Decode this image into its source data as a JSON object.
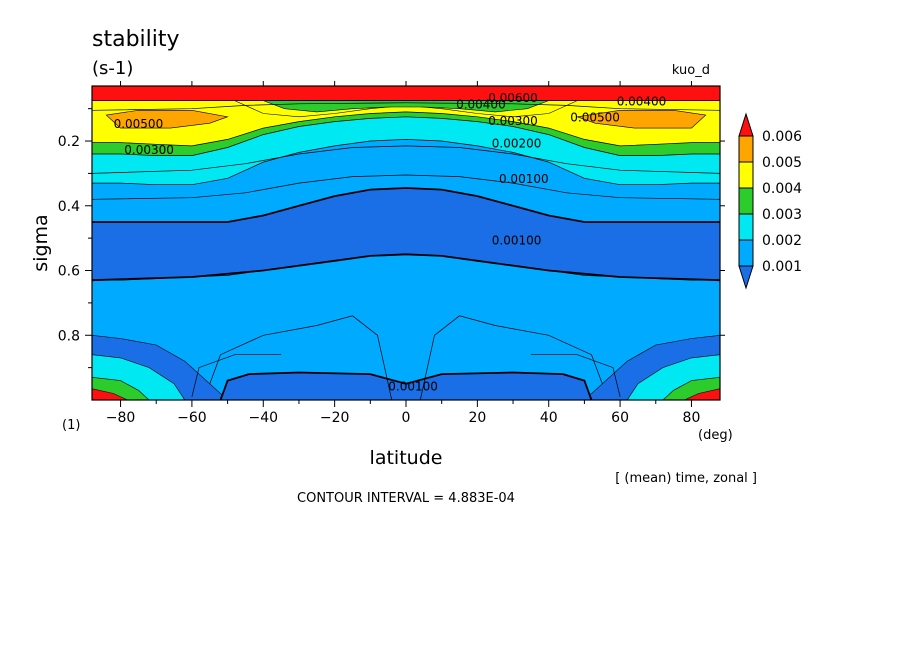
{
  "chart_data": {
    "type": "heatmap",
    "title": "stability",
    "units": "(s-1)",
    "run_label": "kuo_d",
    "xlabel": "latitude",
    "xunit": "(deg)",
    "ylabel": "sigma",
    "yunit": "(1)",
    "operation_note": "[ (mean) time, zonal ]",
    "contour_interval_text": "CONTOUR INTERVAL = 4.883E-04",
    "xlim": [
      -88,
      88
    ],
    "ylim": [
      1.0,
      0.03
    ],
    "xticks": [
      -80,
      -60,
      -40,
      -20,
      0,
      20,
      40,
      60,
      80
    ],
    "yticks": [
      0.2,
      0.4,
      0.6,
      0.8
    ],
    "colorbar_levels": [
      0.001,
      0.002,
      0.003,
      0.004,
      0.005,
      0.006
    ],
    "colorbar_labels": [
      "0.001",
      "0.002",
      "0.003",
      "0.004",
      "0.005",
      "0.006"
    ],
    "colorbar_colors": [
      "#1a6ee6",
      "#00aaff",
      "#00e8f2",
      "#2dcc2d",
      "#ffff00",
      "#ffa500",
      "#ff1010"
    ],
    "contour_labels": [
      {
        "text": "0.00500",
        "lat": -75,
        "sigma": 0.16
      },
      {
        "text": "0.00300",
        "lat": -72,
        "sigma": 0.24
      },
      {
        "text": "0.00600",
        "lat": 30,
        "sigma": 0.08
      },
      {
        "text": "0.00400",
        "lat": 21,
        "sigma": 0.1
      },
      {
        "text": "0.00300",
        "lat": 30,
        "sigma": 0.15
      },
      {
        "text": "0.00200",
        "lat": 31,
        "sigma": 0.22
      },
      {
        "text": "0.00500",
        "lat": 53,
        "sigma": 0.14
      },
      {
        "text": "0.00400",
        "lat": 66,
        "sigma": 0.09
      },
      {
        "text": "0.00100",
        "lat": 33,
        "sigma": 0.33
      },
      {
        "text": "0.00100",
        "lat": 31,
        "sigma": 0.52
      },
      {
        "text": "0.00100",
        "lat": 2,
        "sigma": 0.97
      }
    ]
  },
  "bands": [
    {
      "color": "#ff1010",
      "top": [
        0.03,
        0.03,
        0.03,
        0.03,
        0.03,
        0.03,
        0.03,
        0.03,
        0.03,
        0.03,
        0.03,
        0.03,
        0.03,
        0.03,
        0.03,
        0.03,
        0.03,
        0.03,
        0.03
      ],
      "bottom": [
        0.075,
        0.075,
        0.075,
        0.075,
        0.075,
        0.075,
        0.075,
        0.075,
        0.075,
        0.075,
        0.075,
        0.075,
        0.075,
        0.075,
        0.075,
        0.075,
        0.075,
        0.075,
        0.075
      ]
    },
    {
      "color": "#ffff00",
      "top": [
        0.075,
        0.075,
        0.075,
        0.075,
        0.075,
        0.075,
        0.075,
        0.075,
        0.075,
        0.075,
        0.075,
        0.075,
        0.075,
        0.075,
        0.075,
        0.075,
        0.075,
        0.075,
        0.075
      ],
      "bottom": [
        0.205,
        0.205,
        0.21,
        0.215,
        0.195,
        0.16,
        0.14,
        0.125,
        0.115,
        0.11,
        0.115,
        0.125,
        0.14,
        0.16,
        0.195,
        0.215,
        0.21,
        0.205,
        0.205
      ]
    },
    {
      "color": "#2dcc2d",
      "top": [
        0.205,
        0.205,
        0.21,
        0.215,
        0.195,
        0.16,
        0.14,
        0.125,
        0.115,
        0.11,
        0.115,
        0.125,
        0.14,
        0.16,
        0.195,
        0.215,
        0.21,
        0.205,
        0.205
      ],
      "bottom": [
        0.24,
        0.24,
        0.245,
        0.245,
        0.22,
        0.18,
        0.155,
        0.14,
        0.13,
        0.125,
        0.13,
        0.14,
        0.155,
        0.18,
        0.22,
        0.245,
        0.245,
        0.24,
        0.24
      ]
    },
    {
      "color": "#00e8f2",
      "top": [
        0.24,
        0.24,
        0.245,
        0.245,
        0.22,
        0.18,
        0.155,
        0.14,
        0.13,
        0.125,
        0.13,
        0.14,
        0.155,
        0.18,
        0.22,
        0.245,
        0.245,
        0.24,
        0.24
      ],
      "bottom": [
        0.33,
        0.33,
        0.335,
        0.335,
        0.315,
        0.265,
        0.235,
        0.215,
        0.2,
        0.195,
        0.2,
        0.215,
        0.235,
        0.265,
        0.315,
        0.335,
        0.335,
        0.33,
        0.33
      ]
    },
    {
      "color": "#00aaff",
      "top": [
        0.33,
        0.33,
        0.335,
        0.335,
        0.315,
        0.265,
        0.235,
        0.215,
        0.2,
        0.195,
        0.2,
        0.215,
        0.235,
        0.265,
        0.315,
        0.335,
        0.335,
        0.33,
        0.33
      ],
      "bottom": [
        0.45,
        0.45,
        0.45,
        0.45,
        0.45,
        0.43,
        0.4,
        0.37,
        0.35,
        0.345,
        0.35,
        0.37,
        0.4,
        0.43,
        0.45,
        0.45,
        0.45,
        0.45,
        0.45
      ]
    },
    {
      "color": "#1a6ee6",
      "top": [
        0.45,
        0.45,
        0.45,
        0.45,
        0.45,
        0.43,
        0.4,
        0.37,
        0.35,
        0.345,
        0.35,
        0.37,
        0.4,
        0.43,
        0.45,
        0.45,
        0.45,
        0.45,
        0.45
      ],
      "bottom": [
        0.63,
        0.63,
        0.625,
        0.62,
        0.615,
        0.6,
        0.585,
        0.57,
        0.555,
        0.55,
        0.555,
        0.57,
        0.585,
        0.6,
        0.615,
        0.62,
        0.625,
        0.63,
        0.63
      ]
    },
    {
      "color": "#00aaff",
      "top": [
        0.63,
        0.63,
        0.625,
        0.62,
        0.615,
        0.6,
        0.585,
        0.57,
        0.555,
        0.55,
        0.555,
        0.57,
        0.585,
        0.6,
        0.615,
        0.62,
        0.625,
        0.63,
        0.63
      ],
      "bottom": [
        1.0,
        1.0,
        1.0,
        1.0,
        1.0,
        1.0,
        1.0,
        1.0,
        1.0,
        1.0,
        1.0,
        1.0,
        1.0,
        1.0,
        1.0,
        1.0,
        1.0,
        1.0,
        1.0
      ]
    }
  ],
  "band_x": [
    -88,
    -80,
    -70,
    -60,
    -50,
    -40,
    -30,
    -20,
    -10,
    0,
    10,
    20,
    30,
    40,
    50,
    60,
    70,
    80,
    88
  ],
  "patches": [
    {
      "color": "#1a6ee6",
      "points": [
        [
          -88,
          0.8
        ],
        [
          -80,
          0.81
        ],
        [
          -70,
          0.83
        ],
        [
          -62,
          0.88
        ],
        [
          -55,
          0.95
        ],
        [
          -50,
          1.0
        ],
        [
          -88,
          1.0
        ]
      ]
    },
    {
      "color": "#1a6ee6",
      "points": [
        [
          88,
          0.8
        ],
        [
          80,
          0.81
        ],
        [
          70,
          0.83
        ],
        [
          62,
          0.88
        ],
        [
          55,
          0.95
        ],
        [
          50,
          1.0
        ],
        [
          88,
          1.0
        ]
      ]
    },
    {
      "color": "#00e8f2",
      "points": [
        [
          -88,
          0.86
        ],
        [
          -80,
          0.87
        ],
        [
          -72,
          0.9
        ],
        [
          -65,
          0.95
        ],
        [
          -62,
          1.0
        ],
        [
          -88,
          1.0
        ]
      ]
    },
    {
      "color": "#00e8f2",
      "points": [
        [
          88,
          0.86
        ],
        [
          80,
          0.87
        ],
        [
          72,
          0.9
        ],
        [
          65,
          0.95
        ],
        [
          62,
          1.0
        ],
        [
          88,
          1.0
        ]
      ]
    },
    {
      "color": "#2dcc2d",
      "points": [
        [
          -88,
          0.93
        ],
        [
          -80,
          0.94
        ],
        [
          -75,
          0.97
        ],
        [
          -72,
          1.0
        ],
        [
          -88,
          1.0
        ]
      ]
    },
    {
      "color": "#2dcc2d",
      "points": [
        [
          88,
          0.93
        ],
        [
          80,
          0.94
        ],
        [
          75,
          0.97
        ],
        [
          72,
          1.0
        ],
        [
          88,
          1.0
        ]
      ]
    },
    {
      "color": "#ff1010",
      "points": [
        [
          -88,
          0.965
        ],
        [
          -82,
          0.98
        ],
        [
          -78,
          1.0
        ],
        [
          -88,
          1.0
        ]
      ]
    },
    {
      "color": "#ff1010",
      "points": [
        [
          88,
          0.965
        ],
        [
          82,
          0.98
        ],
        [
          78,
          1.0
        ],
        [
          88,
          1.0
        ]
      ]
    },
    {
      "color": "#1a6ee6",
      "points": [
        [
          -52,
          1.0
        ],
        [
          -50,
          0.94
        ],
        [
          -44,
          0.92
        ],
        [
          -30,
          0.915
        ],
        [
          -10,
          0.92
        ],
        [
          0,
          0.95
        ],
        [
          10,
          0.92
        ],
        [
          30,
          0.915
        ],
        [
          44,
          0.92
        ],
        [
          50,
          0.94
        ],
        [
          52,
          1.0
        ]
      ]
    },
    {
      "color": "#ffa500",
      "points": [
        [
          -84,
          0.12
        ],
        [
          -75,
          0.105
        ],
        [
          -60,
          0.105
        ],
        [
          -50,
          0.125
        ],
        [
          -55,
          0.145
        ],
        [
          -66,
          0.16
        ],
        [
          -80,
          0.16
        ]
      ]
    },
    {
      "color": "#ffa500",
      "points": [
        [
          84,
          0.12
        ],
        [
          75,
          0.105
        ],
        [
          60,
          0.105
        ],
        [
          48,
          0.125
        ],
        [
          53,
          0.145
        ],
        [
          64,
          0.16
        ],
        [
          80,
          0.16
        ]
      ]
    },
    {
      "color": "#ffff00",
      "points": [
        [
          -48,
          0.075
        ],
        [
          -40,
          0.115
        ],
        [
          -30,
          0.125
        ],
        [
          -20,
          0.115
        ],
        [
          -10,
          0.1
        ],
        [
          0,
          0.09
        ],
        [
          10,
          0.1
        ],
        [
          20,
          0.115
        ],
        [
          30,
          0.125
        ],
        [
          40,
          0.115
        ],
        [
          48,
          0.075
        ]
      ]
    },
    {
      "color": "#2dcc2d",
      "points": [
        [
          -40,
          0.075
        ],
        [
          -34,
          0.1
        ],
        [
          -25,
          0.11
        ],
        [
          -15,
          0.1
        ],
        [
          -5,
          0.095
        ],
        [
          0,
          0.095
        ],
        [
          5,
          0.095
        ],
        [
          15,
          0.1
        ],
        [
          25,
          0.11
        ],
        [
          34,
          0.1
        ],
        [
          40,
          0.075
        ]
      ]
    }
  ],
  "thin_lines": [
    [
      [
        -88,
        0.105
      ],
      [
        -60,
        0.1
      ],
      [
        -45,
        0.09
      ],
      [
        -30,
        0.085
      ],
      [
        0,
        0.082
      ],
      [
        30,
        0.085
      ],
      [
        45,
        0.09
      ],
      [
        60,
        0.1
      ],
      [
        88,
        0.105
      ]
    ],
    [
      [
        -88,
        0.3
      ],
      [
        -60,
        0.29
      ],
      [
        -45,
        0.27
      ],
      [
        -30,
        0.24
      ],
      [
        -15,
        0.22
      ],
      [
        0,
        0.215
      ],
      [
        15,
        0.22
      ],
      [
        30,
        0.24
      ],
      [
        45,
        0.27
      ],
      [
        60,
        0.29
      ],
      [
        88,
        0.3
      ]
    ],
    [
      [
        -88,
        0.38
      ],
      [
        -60,
        0.375
      ],
      [
        -45,
        0.36
      ],
      [
        -30,
        0.33
      ],
      [
        -15,
        0.31
      ],
      [
        0,
        0.305
      ],
      [
        15,
        0.31
      ],
      [
        30,
        0.33
      ],
      [
        45,
        0.36
      ],
      [
        60,
        0.375
      ],
      [
        88,
        0.38
      ]
    ],
    [
      [
        -55,
        0.95
      ],
      [
        -52,
        0.86
      ],
      [
        -40,
        0.8
      ],
      [
        -25,
        0.77
      ],
      [
        -15,
        0.74
      ],
      [
        -8,
        0.8
      ],
      [
        -5,
        0.95
      ],
      [
        -4,
        1.0
      ]
    ],
    [
      [
        55,
        0.95
      ],
      [
        52,
        0.86
      ],
      [
        40,
        0.8
      ],
      [
        25,
        0.77
      ],
      [
        15,
        0.74
      ],
      [
        8,
        0.8
      ],
      [
        5,
        0.95
      ],
      [
        4,
        1.0
      ]
    ],
    [
      [
        -60,
        0.99
      ],
      [
        -58,
        0.9
      ],
      [
        -48,
        0.86
      ],
      [
        -35,
        0.86
      ]
    ],
    [
      [
        60,
        0.99
      ],
      [
        58,
        0.9
      ],
      [
        48,
        0.86
      ],
      [
        35,
        0.86
      ]
    ]
  ],
  "thick_lines": [
    [
      [
        -88,
        0.45
      ],
      [
        -60,
        0.45
      ],
      [
        -50,
        0.45
      ],
      [
        -40,
        0.43
      ],
      [
        -30,
        0.4
      ],
      [
        -20,
        0.37
      ],
      [
        -10,
        0.35
      ],
      [
        0,
        0.345
      ],
      [
        10,
        0.35
      ],
      [
        20,
        0.37
      ],
      [
        30,
        0.4
      ],
      [
        40,
        0.43
      ],
      [
        50,
        0.45
      ],
      [
        60,
        0.45
      ],
      [
        88,
        0.45
      ]
    ],
    [
      [
        -88,
        0.63
      ],
      [
        -60,
        0.62
      ],
      [
        -40,
        0.6
      ],
      [
        -20,
        0.57
      ],
      [
        -10,
        0.555
      ],
      [
        0,
        0.55
      ],
      [
        10,
        0.555
      ],
      [
        20,
        0.57
      ],
      [
        40,
        0.6
      ],
      [
        60,
        0.62
      ],
      [
        88,
        0.63
      ]
    ],
    [
      [
        -52,
        1.0
      ],
      [
        -50,
        0.94
      ],
      [
        -44,
        0.92
      ],
      [
        -30,
        0.915
      ],
      [
        -10,
        0.92
      ],
      [
        0,
        0.95
      ],
      [
        10,
        0.92
      ],
      [
        30,
        0.915
      ],
      [
        44,
        0.92
      ],
      [
        50,
        0.94
      ],
      [
        52,
        1.0
      ]
    ]
  ]
}
